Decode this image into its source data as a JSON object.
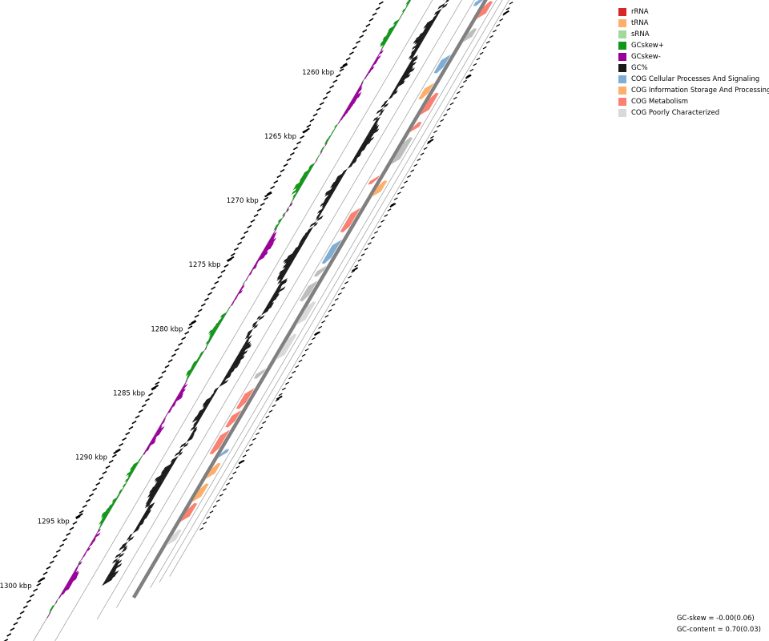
{
  "colors": {
    "rRNA": "#d62728",
    "tRNA": "#fdae6b",
    "sRNA": "#a1d99b",
    "gcskew_plus": "#109618",
    "gcskew_minus": "#990099",
    "gc_content": "#1a1a1a",
    "cog_cellular": "#7fadd4",
    "cog_information": "#fdae6b",
    "cog_metabolism": "#fa8072",
    "cog_poorly": "#d9d9d9",
    "cog_unassigned": "#bdbdbd",
    "backbone": "#808080"
  },
  "axis": {
    "tick_labels": [
      "1260 kbp",
      "1265 kbp",
      "1270 kbp",
      "1275 kbp",
      "1280 kbp",
      "1285 kbp",
      "1290 kbp",
      "1295 kbp",
      "1300 kbp"
    ]
  },
  "legend": {
    "items": [
      {
        "label": "rRNA",
        "color": "#d62728"
      },
      {
        "label": "tRNA",
        "color": "#fdae6b"
      },
      {
        "label": "sRNA",
        "color": "#a1d99b"
      },
      {
        "label": "GCskew+",
        "color": "#109618"
      },
      {
        "label": "GCskew-",
        "color": "#990099"
      },
      {
        "label": "GC%",
        "color": "#1a1a1a"
      },
      {
        "label": "COG Cellular Processes And Signaling",
        "color": "#7fadd4"
      },
      {
        "label": "COG Information Storage And Processing",
        "color": "#fdae6b"
      },
      {
        "label": "COG Metabolism",
        "color": "#fa8072"
      },
      {
        "label": "COG Poorly Characterized",
        "color": "#d9d9d9"
      }
    ]
  },
  "stats": {
    "gc_skew": "GC-skew = -0.00(0.06)",
    "gc_content": "GC-content = 0.70(0.03)"
  }
}
